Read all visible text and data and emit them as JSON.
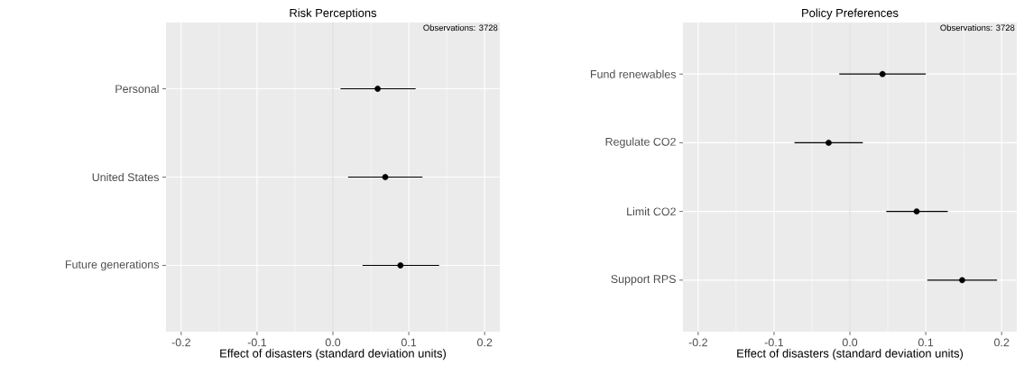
{
  "chart_data": [
    {
      "type": "scatter",
      "title": "Risk Perceptions",
      "xlabel": "Effect of disasters  (standard deviation units)",
      "orientation": "horizontal",
      "categories": [
        "Personal",
        "United States",
        "Future generations"
      ],
      "values": [
        0.059,
        0.069,
        0.089
      ],
      "errors": [
        [
          0.01,
          0.109
        ],
        [
          0.02,
          0.118
        ],
        [
          0.039,
          0.14
        ]
      ],
      "color": "#000000",
      "marker": "circle",
      "xlim": [
        -0.22,
        0.22
      ],
      "xticks": [
        -0.2,
        -0.1,
        {
          "value": 0,
          "label": "0.0"
        },
        0.1,
        0.2
      ],
      "grid": true,
      "ref_lines": [
        {
          "axis": "x",
          "value": 0,
          "color": "#bebebe"
        }
      ],
      "annotations": [
        "Observations: 3728"
      ]
    },
    {
      "type": "scatter",
      "title": "Policy Preferences",
      "xlabel": "Effect of disasters (standard deviation units)",
      "orientation": "horizontal",
      "categories": [
        "Fund renewables",
        "Regulate CO2",
        "Limit CO2",
        "Support RPS"
      ],
      "values": [
        0.043,
        -0.028,
        0.088,
        0.148
      ],
      "errors": [
        [
          -0.014,
          0.1
        ],
        [
          -0.073,
          0.017
        ],
        [
          0.048,
          0.129
        ],
        [
          0.102,
          0.194
        ]
      ],
      "color": "#000000",
      "marker": "circle",
      "xlim": [
        -0.22,
        0.22
      ],
      "xticks": [
        -0.2,
        -0.1,
        {
          "value": 0,
          "label": "0.0"
        },
        0.1,
        0.2
      ],
      "grid": true,
      "ref_lines": [
        {
          "axis": "x",
          "value": 0,
          "color": "#bebebe"
        }
      ],
      "annotations": [
        "Observations: 3728"
      ]
    }
  ]
}
